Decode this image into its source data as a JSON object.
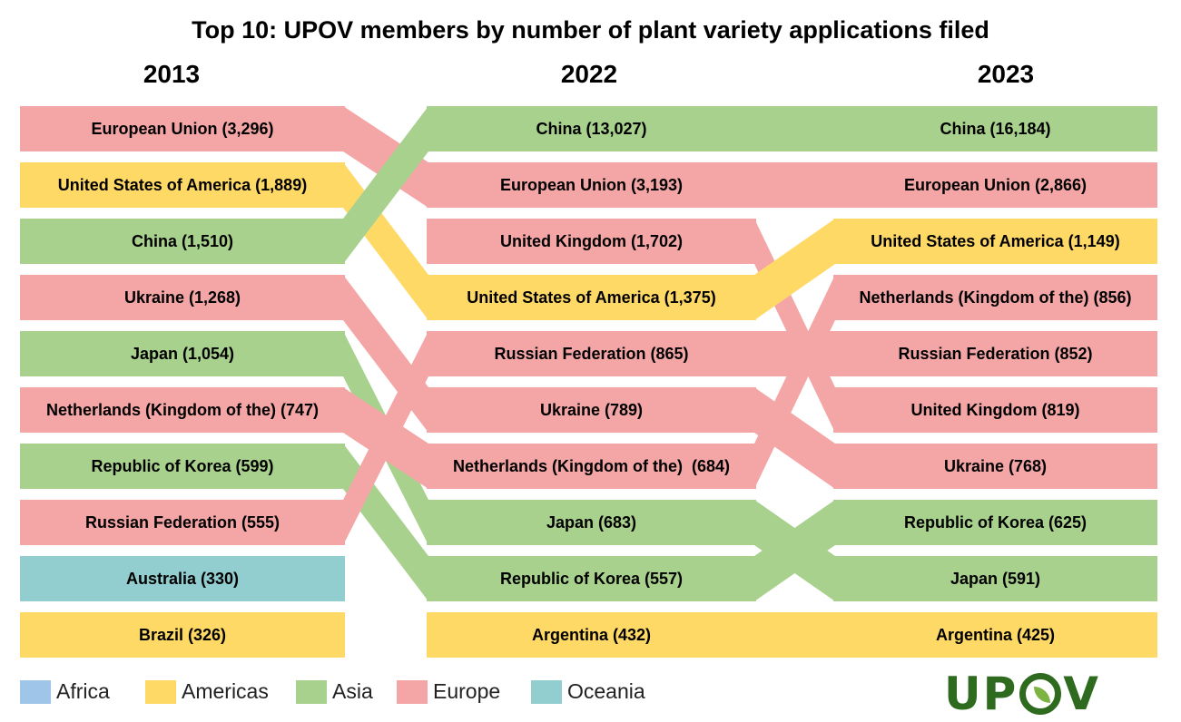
{
  "title": "Top 10: UPOV members by number of plant variety applications filed",
  "years": [
    "2013",
    "2022",
    "2023"
  ],
  "colors": {
    "Africa": "#9fc5e8",
    "Americas": "#ffd966",
    "Asia": "#a9d18e",
    "Europe": "#f4a6a6",
    "Oceania": "#92cdcf"
  },
  "chart_data": {
    "type": "bump",
    "columns": [
      {
        "year": "2013",
        "rows": [
          {
            "label": "European Union (3,296)",
            "member": "European Union",
            "value": 3296,
            "region": "Europe"
          },
          {
            "label": "United States of America (1,889)",
            "member": "United States of America",
            "value": 1889,
            "region": "Americas"
          },
          {
            "label": "China (1,510)",
            "member": "China",
            "value": 1510,
            "region": "Asia"
          },
          {
            "label": "Ukraine (1,268)",
            "member": "Ukraine",
            "value": 1268,
            "region": "Europe"
          },
          {
            "label": "Japan (1,054)",
            "member": "Japan",
            "value": 1054,
            "region": "Asia"
          },
          {
            "label": "Netherlands (Kingdom of the) (747)",
            "member": "Netherlands",
            "value": 747,
            "region": "Europe"
          },
          {
            "label": "Republic of Korea (599)",
            "member": "Republic of Korea",
            "value": 599,
            "region": "Asia"
          },
          {
            "label": "Russian Federation (555)",
            "member": "Russian Federation",
            "value": 555,
            "region": "Europe"
          },
          {
            "label": "Australia (330)",
            "member": "Australia",
            "value": 330,
            "region": "Oceania"
          },
          {
            "label": "Brazil (326)",
            "member": "Brazil",
            "value": 326,
            "region": "Americas"
          }
        ]
      },
      {
        "year": "2022",
        "rows": [
          {
            "label": "China (13,027)",
            "member": "China",
            "value": 13027,
            "region": "Asia"
          },
          {
            "label": "European Union (3,193)",
            "member": "European Union",
            "value": 3193,
            "region": "Europe"
          },
          {
            "label": "United Kingdom (1,702)",
            "member": "United Kingdom",
            "value": 1702,
            "region": "Europe"
          },
          {
            "label": "United States of America (1,375)",
            "member": "United States of America",
            "value": 1375,
            "region": "Americas"
          },
          {
            "label": "Russian Federation (865)",
            "member": "Russian Federation",
            "value": 865,
            "region": "Europe"
          },
          {
            "label": "Ukraine (789)",
            "member": "Ukraine",
            "value": 789,
            "region": "Europe"
          },
          {
            "label": "Netherlands (Kingdom of the)  (684)",
            "member": "Netherlands",
            "value": 684,
            "region": "Europe"
          },
          {
            "label": "Japan (683)",
            "member": "Japan",
            "value": 683,
            "region": "Asia"
          },
          {
            "label": "Republic of Korea (557)",
            "member": "Republic of Korea",
            "value": 557,
            "region": "Asia"
          },
          {
            "label": "Argentina (432)",
            "member": "Argentina",
            "value": 432,
            "region": "Americas"
          }
        ]
      },
      {
        "year": "2023",
        "rows": [
          {
            "label": "China (16,184)",
            "member": "China",
            "value": 16184,
            "region": "Asia"
          },
          {
            "label": "European Union (2,866)",
            "member": "European Union",
            "value": 2866,
            "region": "Europe"
          },
          {
            "label": "United States of America (1,149)",
            "member": "United States of America",
            "value": 1149,
            "region": "Americas"
          },
          {
            "label": "Netherlands (Kingdom of the) (856)",
            "member": "Netherlands",
            "value": 856,
            "region": "Europe"
          },
          {
            "label": "Russian Federation (852)",
            "member": "Russian Federation",
            "value": 852,
            "region": "Europe"
          },
          {
            "label": "United Kingdom (819)",
            "member": "United Kingdom",
            "value": 819,
            "region": "Europe"
          },
          {
            "label": "Ukraine (768)",
            "member": "Ukraine",
            "value": 768,
            "region": "Europe"
          },
          {
            "label": "Republic of Korea (625)",
            "member": "Republic of Korea",
            "value": 625,
            "region": "Asia"
          },
          {
            "label": "Japan (591)",
            "member": "Japan",
            "value": 591,
            "region": "Asia"
          },
          {
            "label": "Argentina (425)",
            "member": "Argentina",
            "value": 425,
            "region": "Americas"
          }
        ]
      }
    ]
  },
  "legend": [
    {
      "label": "Africa",
      "color": "#9fc5e8"
    },
    {
      "label": "Americas",
      "color": "#ffd966"
    },
    {
      "label": "Asia",
      "color": "#a9d18e"
    },
    {
      "label": "Europe",
      "color": "#f4a6a6"
    },
    {
      "label": "Oceania",
      "color": "#92cdcf"
    }
  ],
  "logo": "UPOV"
}
